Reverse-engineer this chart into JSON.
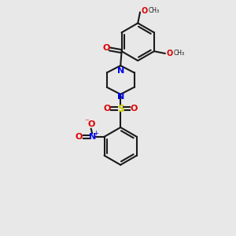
{
  "bg_color": "#e8e8e8",
  "bond_color": "#1a1a1a",
  "N_color": "#0000ee",
  "O_color": "#dd0000",
  "S_color": "#cccc00",
  "lw": 1.5,
  "fig_w": 3.0,
  "fig_h": 3.0,
  "dpi": 100,
  "xlim": [
    -3.5,
    3.5
  ],
  "ylim": [
    -5.5,
    5.0
  ]
}
